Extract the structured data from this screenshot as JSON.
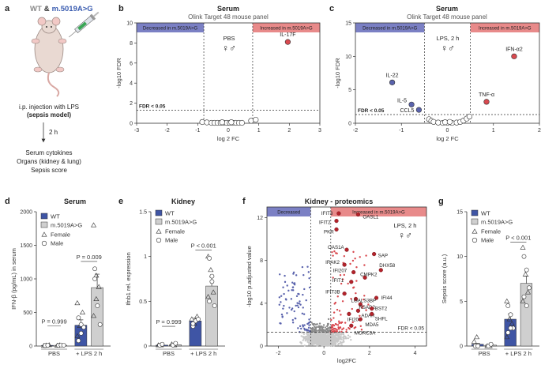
{
  "panels": {
    "a": {
      "label": "a",
      "title_wt": "WT",
      "title_amp": "&",
      "title_mut": "m.5019A>G",
      "injection": "i.p. injection with LPS",
      "model": "(sepsis model)",
      "time": "2 h",
      "outcomes": [
        "Serum cytokines",
        "Organs (kidney & lung)",
        "Sepsis score"
      ],
      "mut_color": "#3a5cb0"
    },
    "b": {
      "label": "b",
      "title": "Serum",
      "subtitle": "Olink Target 48 mouse panel",
      "band_left": "Decreased in m.5019A>G",
      "band_right": "Increased in m.5019A>G",
      "condition": "PBS",
      "sex_symbols": "♀♂",
      "fdr_label": "FDR < 0.05",
      "xlabel": "log 2 FC",
      "ylabel": "-log10 FDR"
    },
    "c": {
      "label": "c",
      "title": "Serum",
      "subtitle": "Olink Target 48 mouse panel",
      "band_left": "Decreased in m.5019A>G",
      "band_right": "Increased in m.5019A>G",
      "condition": "LPS, 2 h",
      "sex_symbols": "♀♂",
      "fdr_label": "FDR < 0.05",
      "xlabel": "log 2 FC",
      "ylabel": "-log10 FDR"
    },
    "d": {
      "label": "d",
      "title": "Serum",
      "ylabel": "IFN-β (pg/mL) in serum",
      "p_left": "P = 0.999",
      "p_right": "P = 0.009",
      "xcat": [
        "PBS",
        "+ LPS 2 h"
      ]
    },
    "e": {
      "label": "e",
      "title": "Kidney",
      "ylabel": "Ifnb1 rel. expression",
      "p_left": "P = 0.999",
      "p_right": "P < 0.001",
      "xcat": [
        "PBS",
        "+ LPS 2 h"
      ]
    },
    "f": {
      "label": "f",
      "title": "Kidney - proteomics",
      "band_left": "Decreased",
      "band_right": "Increased in m.5019A>G",
      "condition": "LPS, 2 h",
      "sex_symbols": "♀♂",
      "fdr_label": "FDR < 0.05",
      "xlabel": "log2FC",
      "ylabel": "-log10 p.adjusted value"
    },
    "g": {
      "label": "g",
      "ylabel": "Sepsis score (a.u.)",
      "p_right": "P < 0.001",
      "xcat": [
        "PBS",
        "+ LPS 2 h"
      ]
    }
  },
  "legend": {
    "wt": "WT",
    "mut": "m.5019A>G",
    "female": "Female",
    "male": "Male"
  },
  "colors": {
    "wt": "#3f55a5",
    "mut": "#cfcfcf",
    "decreased_band": "#7b80c4",
    "increased_band": "#e88a8a",
    "down_point": "#5a63ad",
    "up_point": "#d9494f",
    "sig_up": "#b3232b",
    "ns_point": "#c8c8c8"
  },
  "chart_data": [
    {
      "id": "b",
      "type": "scatter",
      "title": "Serum",
      "xlabel": "log2 FC",
      "ylabel": "-log10 FDR",
      "xlim": [
        -3,
        3
      ],
      "ylim": [
        0,
        10
      ],
      "xticks": [
        -3,
        -2,
        -1,
        0,
        1,
        2,
        3
      ],
      "yticks": [
        0,
        2,
        4,
        6,
        8,
        10
      ],
      "fdr_threshold": 1.3,
      "fc_threshold": [
        -0.8,
        0.8
      ],
      "labeled_points": [
        {
          "name": "IL-17F",
          "x": 1.95,
          "y": 8.1
        }
      ],
      "points": [
        {
          "x": 1.95,
          "y": 8.1,
          "group": "up"
        },
        {
          "x": 0.75,
          "y": 0.25,
          "group": "ns"
        },
        {
          "x": 0.9,
          "y": 0.35,
          "group": "ns"
        },
        {
          "x": -0.85,
          "y": 0.12,
          "group": "ns"
        },
        {
          "x": -0.7,
          "y": 0.08,
          "group": "ns"
        },
        {
          "x": -0.55,
          "y": 0.04,
          "group": "ns"
        },
        {
          "x": -0.45,
          "y": 0.04,
          "group": "ns"
        },
        {
          "x": -0.35,
          "y": 0.04,
          "group": "ns"
        },
        {
          "x": -0.25,
          "y": 0.04,
          "group": "ns"
        },
        {
          "x": -0.15,
          "y": 0.04,
          "group": "ns"
        },
        {
          "x": -0.05,
          "y": 0.04,
          "group": "ns"
        },
        {
          "x": 0.05,
          "y": 0.04,
          "group": "ns"
        },
        {
          "x": 0.15,
          "y": 0.04,
          "group": "ns"
        },
        {
          "x": 0.25,
          "y": 0.04,
          "group": "ns"
        },
        {
          "x": 0.35,
          "y": 0.04,
          "group": "ns"
        },
        {
          "x": 0.45,
          "y": 0.04,
          "group": "ns"
        },
        {
          "x": -0.2,
          "y": 0.1,
          "group": "ns"
        },
        {
          "x": 0.1,
          "y": 0.1,
          "group": "ns"
        }
      ]
    },
    {
      "id": "c",
      "type": "scatter",
      "title": "Serum",
      "xlabel": "log2 FC",
      "ylabel": "-log10 FDR",
      "xlim": [
        -2,
        2
      ],
      "ylim": [
        0,
        15
      ],
      "xticks": [
        -2,
        -1,
        0,
        1,
        2
      ],
      "yticks": [
        0,
        5,
        10,
        15
      ],
      "fdr_threshold": 1.3,
      "fc_threshold": [
        -0.5,
        0.5
      ],
      "labeled_points": [
        {
          "name": "IFN-α2",
          "x": 1.45,
          "y": 10.0
        },
        {
          "name": "IL-22",
          "x": -1.2,
          "y": 6.1
        },
        {
          "name": "TNF-α",
          "x": 0.85,
          "y": 3.2
        },
        {
          "name": "IL-5",
          "x": -0.78,
          "y": 2.8
        },
        {
          "name": "CCL5",
          "x": -0.62,
          "y": 2.0
        }
      ],
      "points": [
        {
          "x": 1.45,
          "y": 10.0,
          "group": "up"
        },
        {
          "x": 0.85,
          "y": 3.2,
          "group": "up"
        },
        {
          "x": -1.2,
          "y": 6.1,
          "group": "down"
        },
        {
          "x": -0.78,
          "y": 2.8,
          "group": "down"
        },
        {
          "x": -0.62,
          "y": 2.0,
          "group": "down"
        },
        {
          "x": -0.4,
          "y": 0.6,
          "group": "ns"
        },
        {
          "x": -0.35,
          "y": 0.35,
          "group": "ns"
        },
        {
          "x": -0.3,
          "y": 0.2,
          "group": "ns"
        },
        {
          "x": -0.2,
          "y": 0.1,
          "group": "ns"
        },
        {
          "x": -0.1,
          "y": 0.05,
          "group": "ns"
        },
        {
          "x": 0.0,
          "y": 0.05,
          "group": "ns"
        },
        {
          "x": 0.1,
          "y": 0.05,
          "group": "ns"
        },
        {
          "x": 0.2,
          "y": 0.1,
          "group": "ns"
        },
        {
          "x": 0.28,
          "y": 0.2,
          "group": "ns"
        },
        {
          "x": 0.35,
          "y": 0.4,
          "group": "ns"
        },
        {
          "x": 0.42,
          "y": 0.7,
          "group": "ns"
        },
        {
          "x": 0.48,
          "y": 1.0,
          "group": "ns"
        },
        {
          "x": -0.05,
          "y": 0.15,
          "group": "ns"
        },
        {
          "x": 0.05,
          "y": 0.2,
          "group": "ns"
        }
      ]
    },
    {
      "id": "d",
      "type": "bar",
      "title": "Serum",
      "ylabel": "IFN-β (pg/mL) in serum",
      "ylim": [
        0,
        2000
      ],
      "yticks": [
        0,
        500,
        1000,
        1500,
        2000
      ],
      "series": [
        {
          "name": "WT PBS",
          "mean": 10,
          "sem": 5,
          "color": "wt",
          "female": [
            5,
            10,
            15
          ],
          "male": [
            8,
            12
          ]
        },
        {
          "name": "m.5019A>G PBS",
          "mean": 12,
          "sem": 5,
          "color": "mut",
          "female": [
            8,
            14
          ],
          "male": [
            10,
            15,
            12
          ]
        },
        {
          "name": "WT LPS",
          "mean": 310,
          "sem": 80,
          "color": "wt",
          "female": [
            150,
            300,
            500,
            640
          ],
          "male": [
            80,
            190,
            280,
            420,
            320
          ]
        },
        {
          "name": "m.5019A>G LPS",
          "mean": 870,
          "sem": 200,
          "color": "mut",
          "female": [
            1800,
            1050,
            880,
            450,
            700
          ],
          "male": [
            1150,
            600,
            320,
            1000
          ]
        }
      ]
    },
    {
      "id": "e",
      "type": "bar",
      "title": "Kidney",
      "ylabel": "Ifnb1 rel. expression",
      "ylim": [
        0,
        1.5
      ],
      "yticks": [
        0,
        0.5,
        1.0,
        1.5
      ],
      "series": [
        {
          "name": "WT PBS",
          "mean": 0.01,
          "sem": 0.005,
          "color": "wt",
          "female": [
            0.01,
            0.01
          ],
          "male": [
            0.01,
            0.02
          ]
        },
        {
          "name": "m.5019A>G PBS",
          "mean": 0.015,
          "sem": 0.005,
          "color": "mut",
          "female": [
            0.02,
            0.01
          ],
          "male": [
            0.01,
            0.03
          ]
        },
        {
          "name": "WT LPS",
          "mean": 0.28,
          "sem": 0.03,
          "color": "wt",
          "female": [
            0.3,
            0.25,
            0.33
          ],
          "male": [
            0.22,
            0.28,
            0.3,
            0.25
          ]
        },
        {
          "name": "m.5019A>G LPS",
          "mean": 0.67,
          "sem": 0.1,
          "color": "mut",
          "female": [
            1.0,
            0.85,
            0.6,
            0.55
          ],
          "male": [
            0.98,
            0.72,
            0.45,
            0.5,
            0.78
          ]
        }
      ]
    },
    {
      "id": "f",
      "type": "scatter",
      "title": "Kidney - proteomics",
      "xlabel": "log2FC",
      "ylabel": "-log10 p.adjusted value",
      "xlim": [
        -2.5,
        4.5
      ],
      "ylim": [
        0,
        13
      ],
      "xticks": [
        -2,
        0,
        2,
        4
      ],
      "yticks": [
        0,
        4,
        8,
        12
      ],
      "fdr_threshold": 1.3,
      "fc_threshold": [
        -0.58,
        0.3
      ],
      "labeled_points": [
        {
          "name": "IFIT3",
          "x": 0.65,
          "y": 12.4
        },
        {
          "name": "OASL1",
          "x": 1.5,
          "y": 12.3
        },
        {
          "name": "IFIT2",
          "x": 0.55,
          "y": 11.7
        },
        {
          "name": "PKR",
          "x": 0.55,
          "y": 10.9
        },
        {
          "name": "OAS1A",
          "x": 1.0,
          "y": 9.0
        },
        {
          "name": "SAP",
          "x": 2.2,
          "y": 8.6
        },
        {
          "name": "IRAK2",
          "x": 0.9,
          "y": 7.6
        },
        {
          "name": "DHX58",
          "x": 2.5,
          "y": 7.1
        },
        {
          "name": "IFI207",
          "x": 1.3,
          "y": 6.9
        },
        {
          "name": "CMPK2",
          "x": 1.8,
          "y": 6.4
        },
        {
          "name": "IFIT1",
          "x": 1.2,
          "y": 6.0
        },
        {
          "name": "IFIT3B",
          "x": 0.9,
          "y": 4.9
        },
        {
          "name": "IFI44",
          "x": 2.3,
          "y": 4.5
        },
        {
          "name": "LGALS3BP",
          "x": 1.4,
          "y": 4.4
        },
        {
          "name": "RSAD2",
          "x": 1.6,
          "y": 3.9
        },
        {
          "name": "ADAR",
          "x": 1.5,
          "y": 3.3
        },
        {
          "name": "BST2",
          "x": 2.1,
          "y": 3.5
        },
        {
          "name": "IFI204",
          "x": 1.1,
          "y": 3.0
        },
        {
          "name": "SHFL",
          "x": 2.1,
          "y": 3.0
        },
        {
          "name": "MDA5",
          "x": 1.6,
          "y": 2.5
        },
        {
          "name": "MORC3A",
          "x": 1.2,
          "y": 1.9
        }
      ]
    },
    {
      "id": "g",
      "type": "bar",
      "ylabel": "Sepsis score (a.u.)",
      "ylim": [
        0,
        15
      ],
      "yticks": [
        0,
        5,
        10,
        15
      ],
      "series": [
        {
          "name": "WT PBS",
          "mean": 0.2,
          "sem": 0.1,
          "color": "wt",
          "female": [
            0.5,
            1.0
          ],
          "male": [
            0,
            0
          ]
        },
        {
          "name": "m.5019A>G PBS",
          "mean": 0.1,
          "sem": 0.05,
          "color": "mut",
          "female": [
            0,
            0
          ],
          "male": [
            0,
            0.2
          ]
        },
        {
          "name": "WT LPS",
          "mean": 3.0,
          "sem": 0.6,
          "color": "wt",
          "female": [
            5.0,
            3.0,
            2.5,
            1.0
          ],
          "male": [
            4.5,
            3.5,
            2.0,
            1.5,
            2.0
          ]
        },
        {
          "name": "m.5019A>G LPS",
          "mean": 7.0,
          "sem": 0.8,
          "color": "mut",
          "female": [
            11.0,
            8.0,
            6.0,
            5.0
          ],
          "male": [
            10.0,
            8.5,
            6.5,
            5.5,
            4.5
          ]
        }
      ]
    }
  ]
}
